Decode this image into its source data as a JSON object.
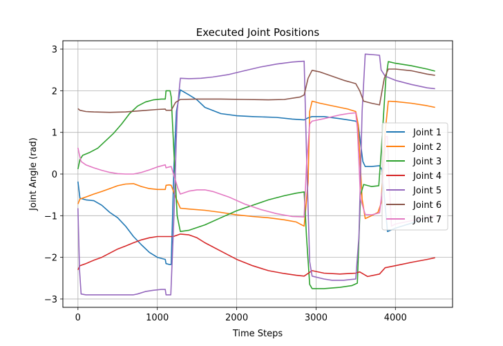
{
  "chart_data": {
    "type": "line",
    "title": "Executed Joint Positions",
    "xlabel": "Time Steps",
    "ylabel": "Joint Angle (rad)",
    "xlim": [
      -190,
      4720
    ],
    "ylim": [
      -3.2,
      3.2
    ],
    "xticks": [
      0,
      1000,
      2000,
      3000,
      4000
    ],
    "yticks": [
      -3,
      -2,
      -1,
      0,
      1,
      2,
      3
    ],
    "grid": true,
    "legend_position": "center-right",
    "series": [
      {
        "name": "Joint 1",
        "color": "#1f77b4",
        "points": [
          [
            0,
            -0.18
          ],
          [
            25,
            -0.58
          ],
          [
            100,
            -0.62
          ],
          [
            200,
            -0.64
          ],
          [
            300,
            -0.75
          ],
          [
            400,
            -0.92
          ],
          [
            500,
            -1.05
          ],
          [
            600,
            -1.25
          ],
          [
            700,
            -1.5
          ],
          [
            800,
            -1.7
          ],
          [
            900,
            -1.88
          ],
          [
            1000,
            -2.0
          ],
          [
            1100,
            -2.05
          ],
          [
            1110,
            -2.15
          ],
          [
            1150,
            -2.17
          ],
          [
            1175,
            -2.17
          ],
          [
            1210,
            0.2
          ],
          [
            1240,
            1.5
          ],
          [
            1290,
            2.02
          ],
          [
            1400,
            1.9
          ],
          [
            1500,
            1.78
          ],
          [
            1600,
            1.6
          ],
          [
            1800,
            1.45
          ],
          [
            2000,
            1.4
          ],
          [
            2200,
            1.38
          ],
          [
            2500,
            1.36
          ],
          [
            2700,
            1.32
          ],
          [
            2850,
            1.3
          ],
          [
            2900,
            1.35
          ],
          [
            2950,
            1.38
          ],
          [
            3100,
            1.38
          ],
          [
            3300,
            1.33
          ],
          [
            3500,
            1.27
          ],
          [
            3530,
            1.2
          ],
          [
            3590,
            0.3
          ],
          [
            3620,
            0.18
          ],
          [
            3700,
            0.18
          ],
          [
            3800,
            0.2
          ],
          [
            3830,
            0.1
          ],
          [
            3900,
            -1.38
          ],
          [
            4000,
            -1.3
          ],
          [
            4200,
            -1.18
          ],
          [
            4350,
            -1.08
          ],
          [
            4500,
            -1.0
          ]
        ]
      },
      {
        "name": "Joint 2",
        "color": "#ff7f0e",
        "points": [
          [
            0,
            -0.72
          ],
          [
            25,
            -0.6
          ],
          [
            100,
            -0.55
          ],
          [
            200,
            -0.48
          ],
          [
            300,
            -0.42
          ],
          [
            400,
            -0.35
          ],
          [
            500,
            -0.28
          ],
          [
            600,
            -0.24
          ],
          [
            700,
            -0.23
          ],
          [
            800,
            -0.3
          ],
          [
            900,
            -0.35
          ],
          [
            1000,
            -0.37
          ],
          [
            1100,
            -0.37
          ],
          [
            1110,
            -0.27
          ],
          [
            1150,
            -0.26
          ],
          [
            1175,
            -0.27
          ],
          [
            1200,
            -0.4
          ],
          [
            1240,
            -0.6
          ],
          [
            1290,
            -0.82
          ],
          [
            1400,
            -0.84
          ],
          [
            1600,
            -0.87
          ],
          [
            1800,
            -0.92
          ],
          [
            2000,
            -0.98
          ],
          [
            2200,
            -1.02
          ],
          [
            2400,
            -1.05
          ],
          [
            2600,
            -1.1
          ],
          [
            2750,
            -1.15
          ],
          [
            2850,
            -1.25
          ],
          [
            2900,
            -0.2
          ],
          [
            2920,
            1.5
          ],
          [
            2950,
            1.75
          ],
          [
            3050,
            1.7
          ],
          [
            3200,
            1.64
          ],
          [
            3400,
            1.56
          ],
          [
            3500,
            1.5
          ],
          [
            3530,
            1.2
          ],
          [
            3580,
            -0.6
          ],
          [
            3620,
            -1.07
          ],
          [
            3700,
            -1.0
          ],
          [
            3780,
            -0.92
          ],
          [
            3820,
            -0.7
          ],
          [
            3870,
            1.0
          ],
          [
            3910,
            1.75
          ],
          [
            4000,
            1.74
          ],
          [
            4200,
            1.7
          ],
          [
            4400,
            1.64
          ],
          [
            4500,
            1.6
          ]
        ]
      },
      {
        "name": "Joint 3",
        "color": "#2ca02c",
        "points": [
          [
            0,
            0.12
          ],
          [
            25,
            0.35
          ],
          [
            60,
            0.45
          ],
          [
            150,
            0.52
          ],
          [
            250,
            0.62
          ],
          [
            350,
            0.8
          ],
          [
            450,
            0.98
          ],
          [
            550,
            1.2
          ],
          [
            650,
            1.45
          ],
          [
            750,
            1.63
          ],
          [
            850,
            1.73
          ],
          [
            950,
            1.78
          ],
          [
            1050,
            1.8
          ],
          [
            1100,
            1.8
          ],
          [
            1110,
            2.0
          ],
          [
            1160,
            2.0
          ],
          [
            1175,
            1.85
          ],
          [
            1210,
            0.5
          ],
          [
            1250,
            -1.0
          ],
          [
            1290,
            -1.38
          ],
          [
            1400,
            -1.35
          ],
          [
            1600,
            -1.22
          ],
          [
            1800,
            -1.05
          ],
          [
            2000,
            -0.88
          ],
          [
            2200,
            -0.75
          ],
          [
            2400,
            -0.62
          ],
          [
            2600,
            -0.52
          ],
          [
            2750,
            -0.46
          ],
          [
            2850,
            -0.43
          ],
          [
            2880,
            -1.5
          ],
          [
            2920,
            -2.65
          ],
          [
            2950,
            -2.75
          ],
          [
            3100,
            -2.75
          ],
          [
            3300,
            -2.72
          ],
          [
            3450,
            -2.68
          ],
          [
            3520,
            -2.62
          ],
          [
            3560,
            -0.5
          ],
          [
            3600,
            -0.25
          ],
          [
            3700,
            -0.3
          ],
          [
            3790,
            -0.28
          ],
          [
            3820,
            0.5
          ],
          [
            3880,
            2.3
          ],
          [
            3910,
            2.7
          ],
          [
            4000,
            2.66
          ],
          [
            4200,
            2.6
          ],
          [
            4400,
            2.52
          ],
          [
            4500,
            2.47
          ]
        ]
      },
      {
        "name": "Joint 4",
        "color": "#d62728",
        "points": [
          [
            0,
            -2.3
          ],
          [
            25,
            -2.2
          ],
          [
            100,
            -2.15
          ],
          [
            200,
            -2.07
          ],
          [
            300,
            -2.0
          ],
          [
            400,
            -1.9
          ],
          [
            500,
            -1.8
          ],
          [
            600,
            -1.73
          ],
          [
            700,
            -1.65
          ],
          [
            800,
            -1.58
          ],
          [
            900,
            -1.53
          ],
          [
            1000,
            -1.5
          ],
          [
            1100,
            -1.5
          ],
          [
            1200,
            -1.5
          ],
          [
            1290,
            -1.44
          ],
          [
            1400,
            -1.46
          ],
          [
            1500,
            -1.53
          ],
          [
            1600,
            -1.65
          ],
          [
            1800,
            -1.85
          ],
          [
            2000,
            -2.05
          ],
          [
            2200,
            -2.2
          ],
          [
            2400,
            -2.32
          ],
          [
            2600,
            -2.39
          ],
          [
            2750,
            -2.43
          ],
          [
            2850,
            -2.45
          ],
          [
            2950,
            -2.32
          ],
          [
            3100,
            -2.38
          ],
          [
            3300,
            -2.4
          ],
          [
            3500,
            -2.38
          ],
          [
            3550,
            -2.35
          ],
          [
            3650,
            -2.46
          ],
          [
            3800,
            -2.4
          ],
          [
            3870,
            -2.25
          ],
          [
            4000,
            -2.2
          ],
          [
            4200,
            -2.12
          ],
          [
            4400,
            -2.05
          ],
          [
            4500,
            -2.01
          ]
        ]
      },
      {
        "name": "Joint 5",
        "color": "#9467bd",
        "points": [
          [
            0,
            -0.82
          ],
          [
            20,
            -2.3
          ],
          [
            40,
            -2.88
          ],
          [
            100,
            -2.9
          ],
          [
            300,
            -2.9
          ],
          [
            500,
            -2.9
          ],
          [
            700,
            -2.9
          ],
          [
            750,
            -2.88
          ],
          [
            850,
            -2.82
          ],
          [
            950,
            -2.79
          ],
          [
            1050,
            -2.77
          ],
          [
            1100,
            -2.77
          ],
          [
            1110,
            -2.9
          ],
          [
            1170,
            -2.9
          ],
          [
            1210,
            -1.0
          ],
          [
            1250,
            1.5
          ],
          [
            1290,
            2.3
          ],
          [
            1400,
            2.29
          ],
          [
            1550,
            2.3
          ],
          [
            1700,
            2.33
          ],
          [
            1900,
            2.39
          ],
          [
            2100,
            2.48
          ],
          [
            2300,
            2.57
          ],
          [
            2500,
            2.64
          ],
          [
            2700,
            2.69
          ],
          [
            2850,
            2.71
          ],
          [
            2880,
            0.5
          ],
          [
            2920,
            -2.1
          ],
          [
            2950,
            -2.45
          ],
          [
            3100,
            -2.52
          ],
          [
            3200,
            -2.55
          ],
          [
            3350,
            -2.55
          ],
          [
            3500,
            -2.52
          ],
          [
            3540,
            -1.5
          ],
          [
            3580,
            1.5
          ],
          [
            3620,
            2.88
          ],
          [
            3750,
            2.86
          ],
          [
            3800,
            2.85
          ],
          [
            3820,
            2.5
          ],
          [
            3870,
            2.35
          ],
          [
            4000,
            2.25
          ],
          [
            4200,
            2.15
          ],
          [
            4400,
            2.07
          ],
          [
            4500,
            2.05
          ]
        ]
      },
      {
        "name": "Joint 6",
        "color": "#8c564b",
        "points": [
          [
            0,
            1.57
          ],
          [
            25,
            1.53
          ],
          [
            100,
            1.5
          ],
          [
            200,
            1.49
          ],
          [
            400,
            1.48
          ],
          [
            600,
            1.49
          ],
          [
            800,
            1.52
          ],
          [
            1000,
            1.55
          ],
          [
            1100,
            1.56
          ],
          [
            1110,
            1.53
          ],
          [
            1175,
            1.53
          ],
          [
            1230,
            1.72
          ],
          [
            1290,
            1.79
          ],
          [
            1500,
            1.8
          ],
          [
            1800,
            1.8
          ],
          [
            2100,
            1.79
          ],
          [
            2400,
            1.78
          ],
          [
            2600,
            1.79
          ],
          [
            2800,
            1.85
          ],
          [
            2850,
            1.9
          ],
          [
            2900,
            2.3
          ],
          [
            2950,
            2.49
          ],
          [
            3050,
            2.45
          ],
          [
            3200,
            2.35
          ],
          [
            3350,
            2.25
          ],
          [
            3500,
            2.17
          ],
          [
            3550,
            2.0
          ],
          [
            3600,
            1.75
          ],
          [
            3700,
            1.7
          ],
          [
            3800,
            1.66
          ],
          [
            3860,
            2.3
          ],
          [
            3910,
            2.52
          ],
          [
            4000,
            2.52
          ],
          [
            4200,
            2.48
          ],
          [
            4400,
            2.4
          ],
          [
            4500,
            2.37
          ]
        ]
      },
      {
        "name": "Joint 7",
        "color": "#e377c2",
        "points": [
          [
            0,
            0.63
          ],
          [
            20,
            0.45
          ],
          [
            40,
            0.3
          ],
          [
            100,
            0.22
          ],
          [
            200,
            0.15
          ],
          [
            300,
            0.09
          ],
          [
            400,
            0.04
          ],
          [
            500,
            0.01
          ],
          [
            600,
            0.0
          ],
          [
            700,
            0.0
          ],
          [
            800,
            0.04
          ],
          [
            900,
            0.1
          ],
          [
            1000,
            0.17
          ],
          [
            1100,
            0.22
          ],
          [
            1110,
            0.15
          ],
          [
            1150,
            0.17
          ],
          [
            1175,
            0.18
          ],
          [
            1220,
            -0.1
          ],
          [
            1260,
            -0.35
          ],
          [
            1290,
            -0.48
          ],
          [
            1400,
            -0.41
          ],
          [
            1500,
            -0.38
          ],
          [
            1600,
            -0.38
          ],
          [
            1700,
            -0.42
          ],
          [
            1900,
            -0.55
          ],
          [
            2100,
            -0.72
          ],
          [
            2300,
            -0.85
          ],
          [
            2500,
            -0.95
          ],
          [
            2700,
            -1.02
          ],
          [
            2850,
            -1.03
          ],
          [
            2880,
            0.2
          ],
          [
            2920,
            1.2
          ],
          [
            2950,
            1.27
          ],
          [
            3100,
            1.33
          ],
          [
            3300,
            1.42
          ],
          [
            3400,
            1.45
          ],
          [
            3500,
            1.47
          ],
          [
            3520,
            1.1
          ],
          [
            3540,
            0.3
          ],
          [
            3560,
            -0.6
          ],
          [
            3620,
            -0.97
          ],
          [
            3700,
            -0.98
          ],
          [
            3800,
            -0.93
          ],
          [
            3840,
            -0.3
          ],
          [
            3880,
            0.9
          ],
          [
            3900,
            0.9
          ],
          [
            3920,
            -0.15
          ],
          [
            3950,
            -1.25
          ],
          [
            4000,
            -1.2
          ],
          [
            4200,
            -1.12
          ],
          [
            4400,
            -1.05
          ],
          [
            4500,
            -1.0
          ]
        ]
      }
    ]
  }
}
